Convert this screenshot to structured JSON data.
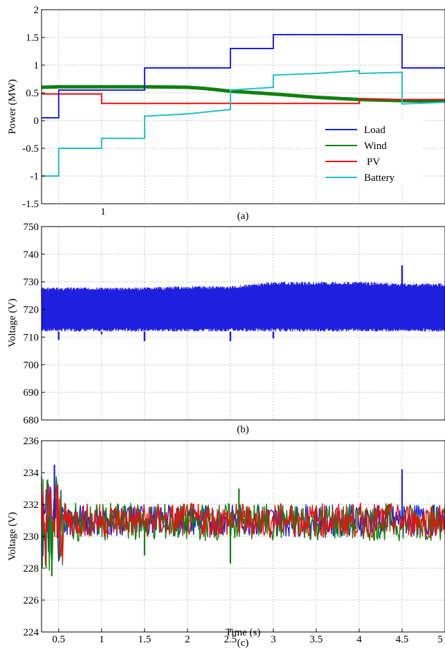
{
  "figure": {
    "caption_a": "(a)",
    "caption_b": "(b)",
    "caption_c": "(c)",
    "xlabel": "Time (s)",
    "stray_tick_a": "1"
  },
  "chart_data": [
    {
      "type": "line",
      "panel": "a",
      "ylabel": "Power (MW)",
      "xlim": [
        0.3,
        5.0
      ],
      "ylim": [
        -1.5,
        2.0
      ],
      "yticks": [
        "2",
        "1.5",
        "1",
        "0.5",
        "0",
        "-0.5",
        "-1",
        "-1.5"
      ],
      "grid": true,
      "legend_position": "lower-right",
      "series": [
        {
          "name": "Load",
          "color": "#1f1fe0",
          "x": [
            0.3,
            0.5,
            0.5,
            0.5,
            1.0,
            1.0,
            1.5,
            1.5,
            2.0,
            2.5,
            2.5,
            3.0,
            3.0,
            4.0,
            4.5,
            4.5,
            5.0
          ],
          "y": [
            0.05,
            0.05,
            0.45,
            0.55,
            0.55,
            0.55,
            0.55,
            0.95,
            0.95,
            0.95,
            1.3,
            1.3,
            1.55,
            1.55,
            1.55,
            0.95,
            0.95
          ]
        },
        {
          "name": "Wind",
          "color": "#108010",
          "x": [
            0.3,
            0.5,
            1.0,
            1.5,
            2.0,
            2.2,
            2.5,
            3.0,
            3.5,
            4.0,
            4.5,
            5.0
          ],
          "y": [
            0.6,
            0.61,
            0.61,
            0.61,
            0.6,
            0.58,
            0.53,
            0.48,
            0.42,
            0.38,
            0.36,
            0.35
          ]
        },
        {
          "name": "PV",
          "color": "#e81010",
          "x": [
            0.3,
            1.0,
            1.0,
            1.5,
            2.0,
            2.5,
            3.0,
            3.5,
            4.0,
            4.0,
            4.5,
            5.0
          ],
          "y": [
            0.48,
            0.48,
            0.31,
            0.31,
            0.31,
            0.31,
            0.31,
            0.31,
            0.31,
            0.38,
            0.38,
            0.38
          ]
        },
        {
          "name": "Battery",
          "color": "#20c0c0",
          "x": [
            0.3,
            0.5,
            0.5,
            1.0,
            1.0,
            1.5,
            1.5,
            2.0,
            2.5,
            2.5,
            3.0,
            3.0,
            3.5,
            4.0,
            4.0,
            4.5,
            4.5,
            5.0
          ],
          "y": [
            -1.0,
            -1.0,
            -0.5,
            -0.5,
            -0.32,
            -0.32,
            0.08,
            0.12,
            0.2,
            0.55,
            0.6,
            0.82,
            0.85,
            0.9,
            0.85,
            0.87,
            0.3,
            0.33
          ]
        }
      ]
    },
    {
      "type": "line",
      "panel": "b",
      "ylabel": "Voltage (V)",
      "xlim": [
        0.3,
        5.0
      ],
      "ylim": [
        680,
        750
      ],
      "yticks": [
        "750",
        "740",
        "730",
        "720",
        "710",
        "700",
        "690",
        "680"
      ],
      "grid": true,
      "series": [
        {
          "color": "#1f1fe0",
          "x": [
            0.3,
            0.5,
            1.0,
            1.5,
            2.0,
            2.5,
            3.0,
            3.5,
            4.0,
            4.5,
            5.0
          ],
          "upper": [
            728,
            728,
            728,
            728,
            728.5,
            728.5,
            730,
            730,
            730,
            729.5,
            729.5
          ],
          "lower": [
            712,
            712,
            712,
            712,
            712,
            712,
            712,
            712,
            712,
            712,
            712
          ]
        }
      ],
      "spikes": [
        {
          "x": 0.5,
          "y": 709
        },
        {
          "x": 1.0,
          "y": 711
        },
        {
          "x": 1.5,
          "y": 708.5
        },
        {
          "x": 2.5,
          "y": 708.5
        },
        {
          "x": 3.0,
          "y": 709.5
        },
        {
          "x": 4.5,
          "y": 736
        }
      ]
    },
    {
      "type": "line",
      "panel": "c",
      "ylabel": "Voltage (V)",
      "xlabel": "Time (s)",
      "xlim": [
        0.3,
        5.0
      ],
      "ylim": [
        224,
        236
      ],
      "xticks": [
        "0.5",
        "1",
        "1.5",
        "2",
        "2.5",
        "3",
        "3.5",
        "4",
        "4.5",
        "5"
      ],
      "yticks": [
        "236",
        "234",
        "232",
        "230",
        "228",
        "226",
        "224"
      ],
      "grid": true,
      "series": [
        {
          "color": "#1f1fe0",
          "center": 231.0,
          "amp": 1.0
        },
        {
          "color": "#108010",
          "center": 230.9,
          "amp": 1.2
        },
        {
          "color": "#e81010",
          "center": 231.0,
          "amp": 1.1
        }
      ],
      "spikes": [
        {
          "x": 0.45,
          "y": 234.5
        },
        {
          "x": 0.42,
          "y": 227.5
        },
        {
          "x": 1.5,
          "y": 228.8
        },
        {
          "x": 2.5,
          "y": 228.3
        },
        {
          "x": 2.6,
          "y": 233.0
        },
        {
          "x": 4.5,
          "y": 234.2
        }
      ]
    }
  ]
}
